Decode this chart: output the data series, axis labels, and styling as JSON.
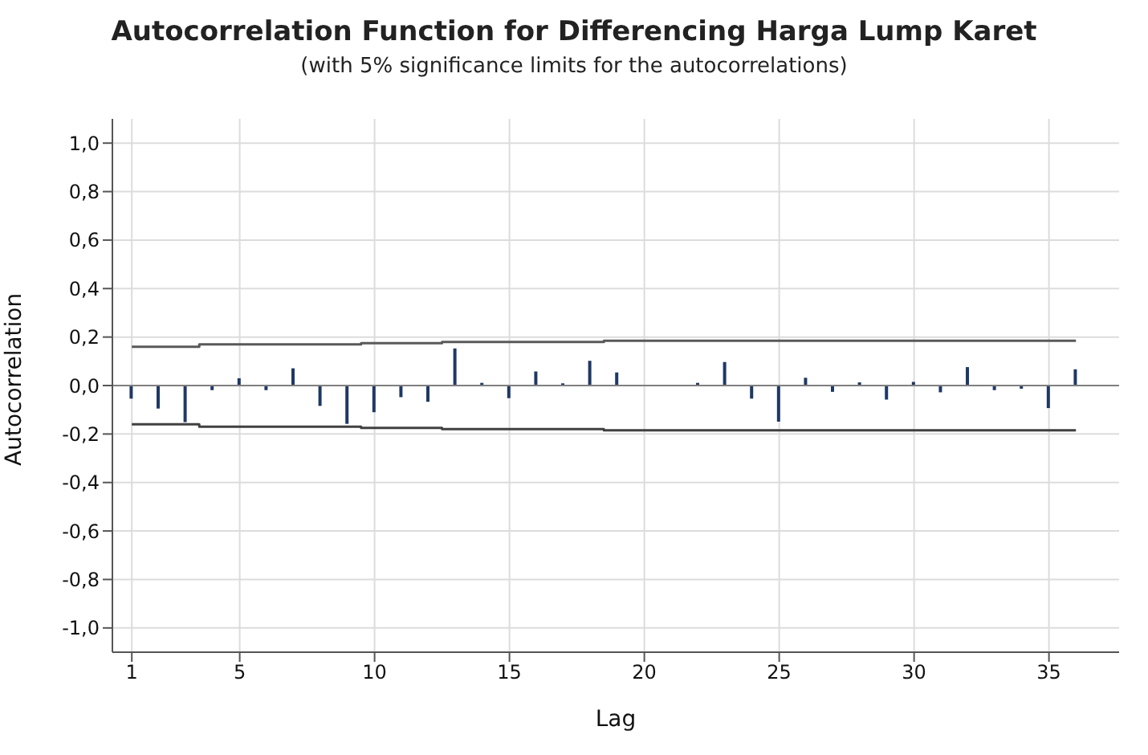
{
  "chart_data": {
    "type": "bar",
    "title": "Autocorrelation Function for Differencing Harga Lump Karet",
    "subtitle": "(with 5% significance limits for the autocorrelations)",
    "xlabel": "Lag",
    "ylabel": "Autocorrelation",
    "x": [
      1,
      2,
      3,
      4,
      5,
      6,
      7,
      8,
      9,
      10,
      11,
      12,
      13,
      14,
      15,
      16,
      17,
      18,
      19,
      20,
      21,
      22,
      23,
      24,
      25,
      26,
      27,
      28,
      29,
      30,
      31,
      32,
      33,
      34,
      35,
      36
    ],
    "series": [
      {
        "color": "#1f3864",
        "values": [
          -0.054,
          -0.095,
          -0.151,
          -0.019,
          0.03,
          -0.019,
          0.071,
          -0.084,
          -0.158,
          -0.11,
          -0.048,
          -0.067,
          0.153,
          0.011,
          -0.052,
          0.058,
          0.009,
          0.102,
          0.054,
          null,
          null,
          0.011,
          0.097,
          -0.054,
          -0.149,
          0.032,
          -0.026,
          0.013,
          -0.058,
          0.015,
          -0.028,
          0.076,
          -0.019,
          -0.013,
          -0.093,
          0.067
        ]
      },
      {
        "type": "step",
        "color": "#595959",
        "values": [
          0.16,
          0.16,
          0.16,
          0.17,
          0.17,
          0.17,
          0.17,
          0.17,
          0.17,
          0.175,
          0.175,
          0.175,
          0.18,
          0.18,
          0.18,
          0.18,
          0.18,
          0.18,
          0.185,
          0.185,
          0.185,
          0.185,
          0.185,
          0.185,
          0.185,
          0.185,
          0.185,
          0.185,
          0.185,
          0.185,
          0.185,
          0.185,
          0.185,
          0.185,
          0.185,
          0.185
        ]
      },
      {
        "type": "step",
        "color": "#404040",
        "values": [
          -0.16,
          -0.16,
          -0.16,
          -0.17,
          -0.17,
          -0.17,
          -0.17,
          -0.17,
          -0.17,
          -0.175,
          -0.175,
          -0.175,
          -0.18,
          -0.18,
          -0.18,
          -0.18,
          -0.18,
          -0.18,
          -0.185,
          -0.185,
          -0.185,
          -0.185,
          -0.185,
          -0.185,
          -0.185,
          -0.185,
          -0.185,
          -0.185,
          -0.185,
          -0.185,
          -0.185,
          -0.185,
          -0.185,
          -0.185,
          -0.185,
          -0.185
        ]
      }
    ],
    "xlim": [
      0.28,
      37.6
    ],
    "xticks": [
      1,
      5,
      10,
      15,
      20,
      25,
      30,
      35
    ],
    "ylim": [
      -1.1,
      1.1
    ],
    "yticks": [
      {
        "value": -1,
        "label": "-1,0"
      },
      {
        "value": -0.8,
        "label": "-0,8"
      },
      {
        "value": -0.6,
        "label": "-0,6"
      },
      {
        "value": -0.4,
        "label": "-0,4"
      },
      {
        "value": -0.2,
        "label": "-0,2"
      },
      {
        "value": 0,
        "label": "0,0"
      },
      {
        "value": 0.2,
        "label": "0,2"
      },
      {
        "value": 0.4,
        "label": "0,4"
      },
      {
        "value": 0.6,
        "label": "0,6"
      },
      {
        "value": 0.8,
        "label": "0,8"
      },
      {
        "value": 1,
        "label": "1,0"
      }
    ],
    "ref_lines": [
      {
        "axis": "y",
        "value": 0,
        "color": "#7f7f7f"
      }
    ],
    "grid": true
  }
}
